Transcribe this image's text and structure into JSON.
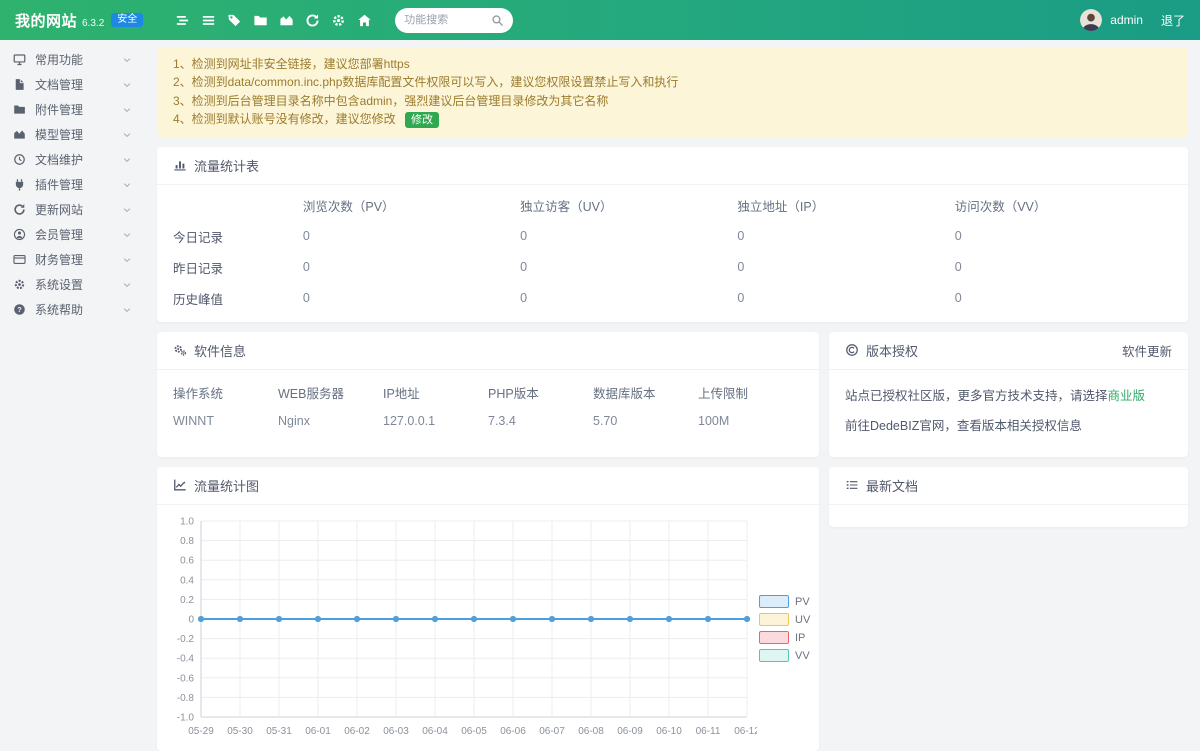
{
  "navbar": {
    "brand": "我的网站",
    "version": "6.3.2",
    "badge": "安全",
    "search_placeholder": "功能搜索",
    "username": "admin",
    "logout": "退了",
    "icons": [
      "stream-icon",
      "menu-icon",
      "tag-icon",
      "folder-icon",
      "chart-area-icon",
      "refresh-icon",
      "gear-icon",
      "home-icon",
      "search-icon"
    ]
  },
  "sidebar": {
    "items": [
      {
        "label": "常用功能",
        "icon": "desktop-icon"
      },
      {
        "label": "文档管理",
        "icon": "file-icon"
      },
      {
        "label": "附件管理",
        "icon": "folder-icon"
      },
      {
        "label": "模型管理",
        "icon": "chart-area-icon"
      },
      {
        "label": "文档维护",
        "icon": "clock-icon"
      },
      {
        "label": "插件管理",
        "icon": "plugin-icon"
      },
      {
        "label": "更新网站",
        "icon": "refresh-icon"
      },
      {
        "label": "会员管理",
        "icon": "user-icon"
      },
      {
        "label": "财务管理",
        "icon": "credit-card-icon"
      },
      {
        "label": "系统设置",
        "icon": "gear-icon"
      },
      {
        "label": "系统帮助",
        "icon": "question-icon"
      }
    ]
  },
  "alerts": {
    "items": [
      "1、检测到网址非安全链接，建议您部署https",
      "2、检测到data/common.inc.php数据库配置文件权限可以写入，建议您权限设置禁止写入和执行",
      "3、检测到后台管理目录名称中包含admin，强烈建议后台管理目录修改为其它名称",
      "4、检测到默认账号没有修改，建议您修改"
    ],
    "fix_button": "修改"
  },
  "traffic_table": {
    "title": "流量统计表",
    "icon": "bar-chart-icon",
    "columns": [
      "浏览次数（PV）",
      "独立访客（UV）",
      "独立地址（IP）",
      "访问次数（VV）"
    ],
    "rows": [
      {
        "label": "今日记录",
        "values": [
          "0",
          "0",
          "0",
          "0"
        ]
      },
      {
        "label": "昨日记录",
        "values": [
          "0",
          "0",
          "0",
          "0"
        ]
      },
      {
        "label": "历史峰值",
        "values": [
          "0",
          "0",
          "0",
          "0"
        ]
      }
    ]
  },
  "software_info": {
    "title": "软件信息",
    "icon": "cogs-icon",
    "columns": [
      "操作系统",
      "WEB服务器",
      "IP地址",
      "PHP版本",
      "数据库版本",
      "上传限制"
    ],
    "values": [
      "WINNT",
      "Nginx",
      "127.0.0.1",
      "7.3.4",
      "5.70",
      "100M"
    ]
  },
  "license": {
    "title": "版本授权",
    "icon": "copyright-icon",
    "update_link": "软件更新",
    "line1_prefix": "站点已授权社区版，更多官方技术支持，请选择",
    "line1_link": "商业版",
    "line2": "前往DedeBIZ官网，查看版本相关授权信息"
  },
  "chart_panel": {
    "title": "流量统计图",
    "icon": "line-chart-icon"
  },
  "latest_docs": {
    "title": "最新文档",
    "icon": "list-icon"
  },
  "chart_data": {
    "type": "line",
    "title": "流量统计图",
    "x": [
      "05-29",
      "05-30",
      "05-31",
      "06-01",
      "06-02",
      "06-03",
      "06-04",
      "06-05",
      "06-06",
      "06-07",
      "06-08",
      "06-09",
      "06-10",
      "06-11",
      "06-12"
    ],
    "series": [
      {
        "name": "PV",
        "values": [
          0,
          0,
          0,
          0,
          0,
          0,
          0,
          0,
          0,
          0,
          0,
          0,
          0,
          0,
          0
        ],
        "color": "#4aa0e0",
        "fill": "#dcecf9"
      },
      {
        "name": "UV",
        "values": [
          0,
          0,
          0,
          0,
          0,
          0,
          0,
          0,
          0,
          0,
          0,
          0,
          0,
          0,
          0
        ],
        "color": "#edc65b",
        "fill": "#fdf3d8"
      },
      {
        "name": "IP",
        "values": [
          0,
          0,
          0,
          0,
          0,
          0,
          0,
          0,
          0,
          0,
          0,
          0,
          0,
          0,
          0
        ],
        "color": "#e8656e",
        "fill": "#fbdade"
      },
      {
        "name": "VV",
        "values": [
          0,
          0,
          0,
          0,
          0,
          0,
          0,
          0,
          0,
          0,
          0,
          0,
          0,
          0,
          0
        ],
        "color": "#52c7ba",
        "fill": "#def5f2"
      }
    ],
    "ylim": [
      -1,
      1
    ],
    "ytick_step": 0.2,
    "grid": true,
    "legend_position": "right"
  },
  "colors": {
    "navbar_green": "#2eb26e",
    "navbar_teal": "#1a9c85",
    "badge_blue": "#1e88e5",
    "alert_bg": "#fcf5d8",
    "alert_text": "#9b7c2d",
    "fix_green": "#2fa84f",
    "link_green": "#2eae67",
    "line_blue": "#4aa0e0"
  }
}
